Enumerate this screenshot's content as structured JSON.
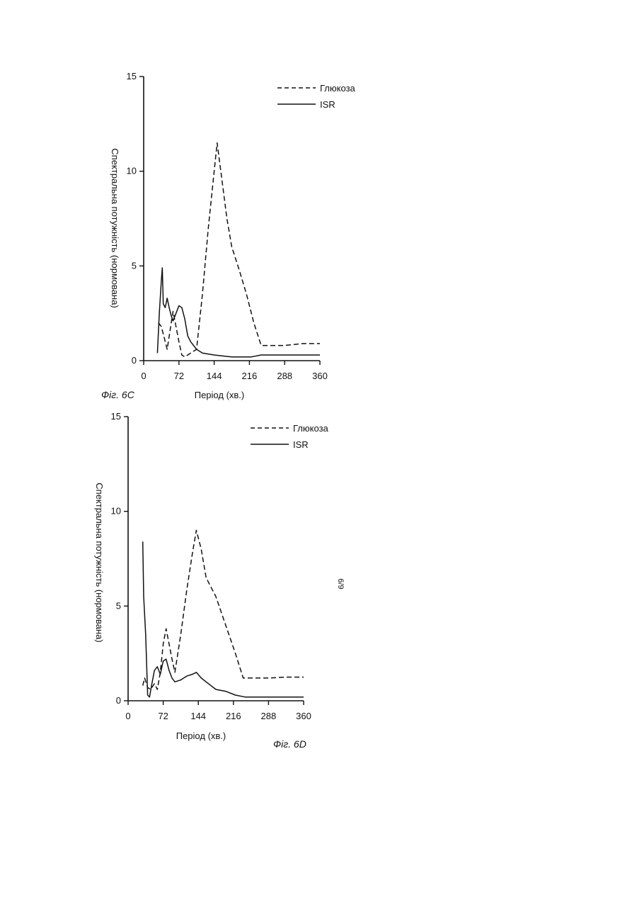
{
  "page_marker": "6/9",
  "chart_data": [
    {
      "type": "line",
      "figure_label": "Фіг. 6С",
      "xlabel": "Період (хв.)",
      "ylabel": "Спектральна потужність (нормована)",
      "xlim": [
        0,
        360
      ],
      "ylim": [
        0,
        15
      ],
      "x_ticks": [
        "0",
        "72",
        "144",
        "216",
        "288",
        "360"
      ],
      "y_ticks": [
        "0",
        "5",
        "10",
        "15"
      ],
      "legend_position": "top-right",
      "series": [
        {
          "name": "Глюкоза",
          "style": "dashed",
          "points": [
            [
              30,
              2.0
            ],
            [
              36,
              1.8
            ],
            [
              42,
              1.2
            ],
            [
              48,
              0.6
            ],
            [
              54,
              1.6
            ],
            [
              60,
              2.6
            ],
            [
              66,
              1.8
            ],
            [
              72,
              1.0
            ],
            [
              78,
              0.3
            ],
            [
              84,
              0.2
            ],
            [
              96,
              0.4
            ],
            [
              108,
              0.6
            ],
            [
              120,
              3.5
            ],
            [
              132,
              7.0
            ],
            [
              144,
              10.0
            ],
            [
              150,
              11.5
            ],
            [
              160,
              9.5
            ],
            [
              170,
              7.5
            ],
            [
              180,
              6.0
            ],
            [
              195,
              4.8
            ],
            [
              210,
              3.5
            ],
            [
              225,
              2.0
            ],
            [
              240,
              0.8
            ],
            [
              260,
              0.8
            ],
            [
              288,
              0.8
            ],
            [
              324,
              0.9
            ],
            [
              360,
              0.9
            ]
          ]
        },
        {
          "name": "ISR",
          "style": "solid",
          "points": [
            [
              28,
              0.4
            ],
            [
              32,
              2.5
            ],
            [
              36,
              4.2
            ],
            [
              38,
              4.9
            ],
            [
              40,
              3.0
            ],
            [
              44,
              2.8
            ],
            [
              48,
              3.3
            ],
            [
              52,
              2.8
            ],
            [
              56,
              2.4
            ],
            [
              60,
              2.1
            ],
            [
              66,
              2.5
            ],
            [
              72,
              2.9
            ],
            [
              78,
              2.8
            ],
            [
              84,
              2.2
            ],
            [
              90,
              1.3
            ],
            [
              96,
              1.0
            ],
            [
              108,
              0.6
            ],
            [
              120,
              0.4
            ],
            [
              144,
              0.3
            ],
            [
              160,
              0.25
            ],
            [
              180,
              0.2
            ],
            [
              200,
              0.2
            ],
            [
              220,
              0.2
            ],
            [
              240,
              0.3
            ],
            [
              260,
              0.3
            ],
            [
              288,
              0.3
            ],
            [
              324,
              0.3
            ],
            [
              360,
              0.3
            ]
          ]
        }
      ]
    },
    {
      "type": "line",
      "figure_label": "Фіг. 6D",
      "xlabel": "Період (хв.)",
      "ylabel": "Спектральна потужність (нормована)",
      "xlim": [
        0,
        360
      ],
      "ylim": [
        0,
        15
      ],
      "x_ticks": [
        "0",
        "72",
        "144",
        "216",
        "288",
        "360"
      ],
      "y_ticks": [
        "0",
        "5",
        "10",
        "15"
      ],
      "legend_position": "top-right",
      "series": [
        {
          "name": "Глюкоза",
          "style": "dashed",
          "points": [
            [
              30,
              0.8
            ],
            [
              34,
              1.2
            ],
            [
              40,
              0.7
            ],
            [
              46,
              0.6
            ],
            [
              54,
              0.9
            ],
            [
              60,
              0.6
            ],
            [
              66,
              1.5
            ],
            [
              72,
              3.0
            ],
            [
              78,
              3.8
            ],
            [
              84,
              3.0
            ],
            [
              90,
              2.2
            ],
            [
              96,
              1.5
            ],
            [
              108,
              3.5
            ],
            [
              120,
              5.8
            ],
            [
              132,
              7.8
            ],
            [
              140,
              9.0
            ],
            [
              150,
              8.0
            ],
            [
              160,
              6.5
            ],
            [
              180,
              5.5
            ],
            [
              200,
              4.0
            ],
            [
              220,
              2.5
            ],
            [
              236,
              1.2
            ],
            [
              260,
              1.2
            ],
            [
              288,
              1.2
            ],
            [
              324,
              1.25
            ],
            [
              360,
              1.25
            ]
          ]
        },
        {
          "name": "ISR",
          "style": "solid",
          "points": [
            [
              30,
              8.4
            ],
            [
              32,
              5.5
            ],
            [
              36,
              3.5
            ],
            [
              40,
              0.3
            ],
            [
              44,
              0.2
            ],
            [
              48,
              0.8
            ],
            [
              54,
              1.6
            ],
            [
              60,
              1.8
            ],
            [
              66,
              1.4
            ],
            [
              72,
              2.1
            ],
            [
              78,
              2.2
            ],
            [
              84,
              1.6
            ],
            [
              90,
              1.2
            ],
            [
              96,
              1.0
            ],
            [
              108,
              1.1
            ],
            [
              120,
              1.3
            ],
            [
              132,
              1.4
            ],
            [
              140,
              1.5
            ],
            [
              150,
              1.2
            ],
            [
              160,
              1.0
            ],
            [
              180,
              0.6
            ],
            [
              200,
              0.5
            ],
            [
              220,
              0.3
            ],
            [
              240,
              0.2
            ],
            [
              288,
              0.2
            ],
            [
              324,
              0.2
            ],
            [
              360,
              0.2
            ]
          ]
        }
      ]
    }
  ]
}
